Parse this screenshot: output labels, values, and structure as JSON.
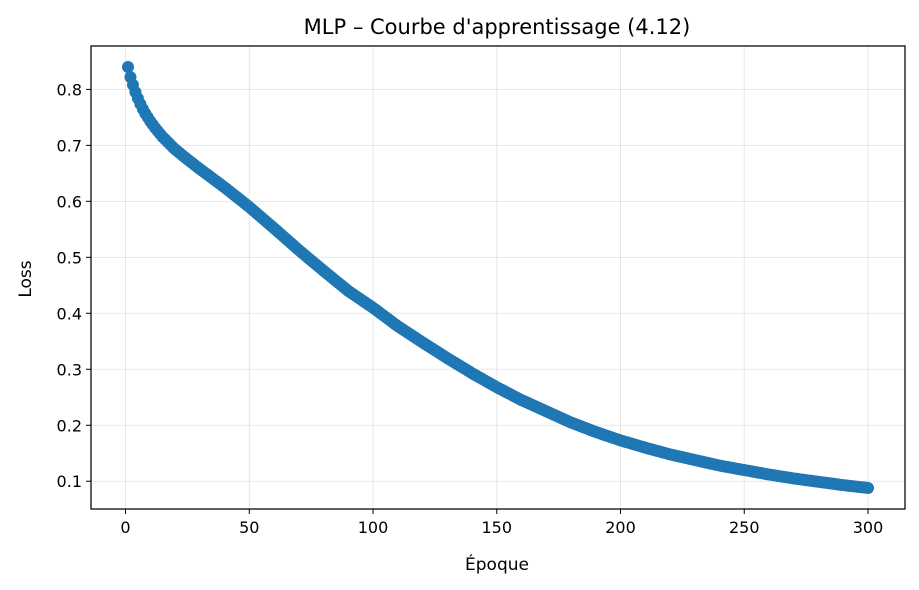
{
  "chart_data": {
    "type": "scatter",
    "title": "MLP – Courbe d'apprentissage (4.12)",
    "xlabel": "Époque",
    "ylabel": "Loss",
    "xlim": [
      -13.95,
      314.95
    ],
    "ylim": [
      0.0504,
      0.8775
    ],
    "xticks": [
      0,
      50,
      100,
      150,
      200,
      250,
      300
    ],
    "xtick_labels": [
      "0",
      "50",
      "100",
      "150",
      "200",
      "250",
      "300"
    ],
    "yticks": [
      0.1,
      0.2,
      0.3,
      0.4,
      0.5,
      0.6,
      0.7,
      0.8
    ],
    "ytick_labels": [
      "0.1",
      "0.2",
      "0.3",
      "0.4",
      "0.5",
      "0.6",
      "0.7",
      "0.8"
    ],
    "grid": true,
    "legend": false,
    "marker_color": "#1f77b4",
    "x": [
      1,
      2,
      3,
      4,
      5,
      6,
      7,
      8,
      10,
      12,
      15,
      20,
      25,
      30,
      40,
      50,
      60,
      70,
      80,
      90,
      100,
      110,
      120,
      130,
      140,
      150,
      160,
      170,
      180,
      190,
      200,
      210,
      220,
      230,
      240,
      250,
      260,
      270,
      280,
      290,
      300
    ],
    "y": [
      0.84,
      0.822,
      0.808,
      0.795,
      0.784,
      0.774,
      0.765,
      0.757,
      0.743,
      0.731,
      0.715,
      0.693,
      0.675,
      0.658,
      0.625,
      0.59,
      0.552,
      0.513,
      0.476,
      0.44,
      0.41,
      0.377,
      0.348,
      0.32,
      0.293,
      0.268,
      0.245,
      0.225,
      0.205,
      0.188,
      0.173,
      0.16,
      0.148,
      0.138,
      0.128,
      0.12,
      0.112,
      0.105,
      0.099,
      0.093,
      0.088
    ]
  }
}
